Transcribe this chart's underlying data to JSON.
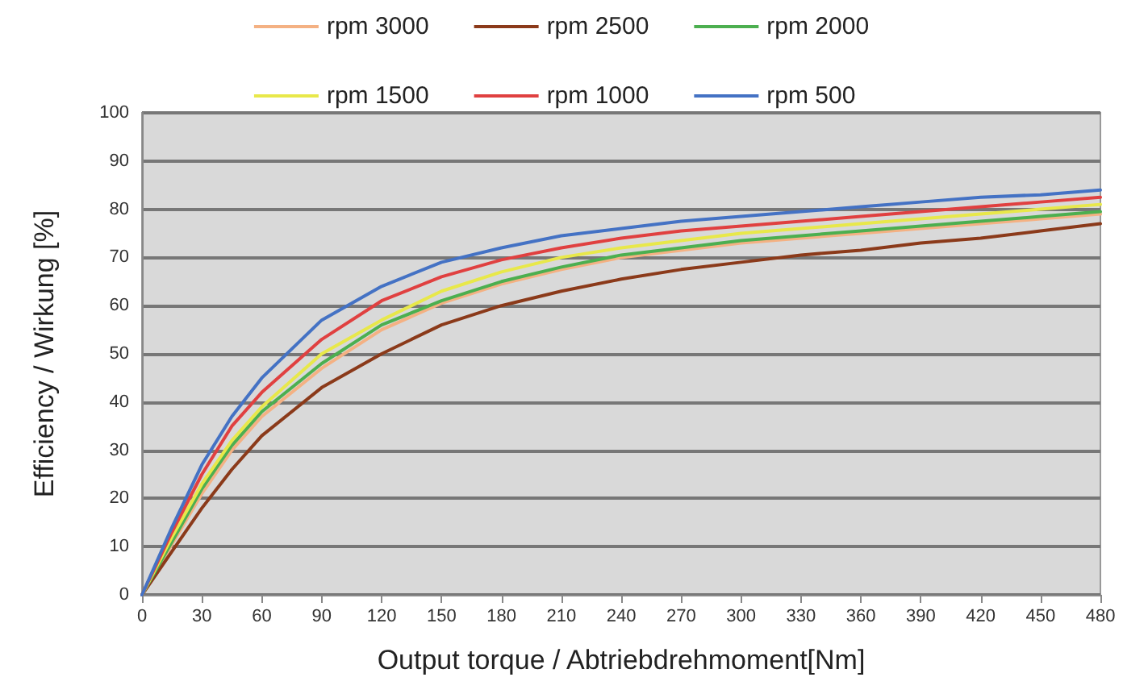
{
  "chart_data": {
    "type": "line",
    "xlabel": "Output torque / Abtriebdrehmoment[Nm]",
    "ylabel": "Efficiency / Wirkung [%]",
    "x": [
      0,
      15,
      30,
      45,
      60,
      90,
      120,
      150,
      180,
      210,
      240,
      270,
      300,
      330,
      360,
      390,
      420,
      450,
      480
    ],
    "series": [
      {
        "name": "rpm 3000",
        "color": "#f4b183",
        "values": [
          0,
          10.5,
          21,
          30,
          37,
          47,
          55,
          60.5,
          64.5,
          67.5,
          70,
          71.5,
          73,
          74,
          75,
          76,
          77,
          78,
          79
        ]
      },
      {
        "name": "rpm 2500",
        "color": "#8b3a1a",
        "values": [
          0,
          9,
          18,
          26,
          33,
          43,
          50,
          56,
          60,
          63,
          65.5,
          67.5,
          69,
          70.5,
          71.5,
          73,
          74,
          75.5,
          77
        ]
      },
      {
        "name": "rpm 2000",
        "color": "#4caf50",
        "values": [
          0,
          11,
          22,
          31,
          38,
          48,
          56,
          61,
          65,
          68,
          70.5,
          72,
          73.5,
          74.5,
          75.5,
          76.5,
          77.5,
          78.5,
          79.5
        ]
      },
      {
        "name": "rpm 1500",
        "color": "#e8e84a",
        "values": [
          0,
          12,
          23,
          32,
          39,
          50,
          57,
          63,
          67,
          70,
          72,
          73.5,
          75,
          76,
          77,
          78,
          79,
          80,
          81
        ]
      },
      {
        "name": "rpm 1000",
        "color": "#e04040",
        "values": [
          0,
          13,
          25,
          35,
          42,
          53,
          61,
          66,
          69.5,
          72,
          74,
          75.5,
          76.5,
          77.5,
          78.5,
          79.5,
          80.5,
          81.5,
          82.5
        ]
      },
      {
        "name": "rpm 500",
        "color": "#4472c4",
        "values": [
          0,
          14,
          27,
          37,
          45,
          57,
          64,
          69,
          72,
          74.5,
          76,
          77.5,
          78.5,
          79.5,
          80.5,
          81.5,
          82.5,
          83,
          84
        ]
      }
    ],
    "xlim": [
      0,
      480
    ],
    "xticks": [
      0,
      30,
      60,
      90,
      120,
      150,
      180,
      210,
      240,
      270,
      300,
      330,
      360,
      390,
      420,
      450,
      480
    ],
    "ylim": [
      0,
      100
    ],
    "yticks": [
      0,
      10,
      20,
      30,
      40,
      50,
      60,
      70,
      80,
      90,
      100
    ],
    "grid": "y",
    "legend": "top",
    "marker": "none",
    "line_style": "solid"
  }
}
